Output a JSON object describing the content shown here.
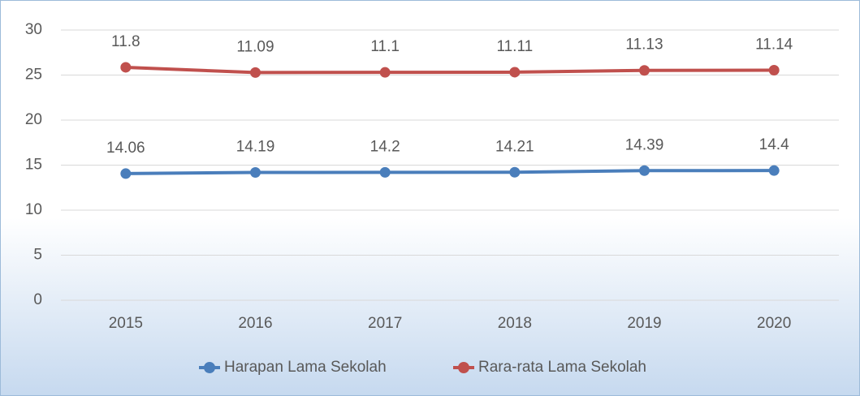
{
  "chart_data": {
    "type": "line",
    "stacked": true,
    "categories": [
      "2015",
      "2016",
      "2017",
      "2018",
      "2019",
      "2020"
    ],
    "series": [
      {
        "name": "Harapan Lama Sekolah",
        "color": "#4a7ebb",
        "values": [
          14.06,
          14.19,
          14.2,
          14.21,
          14.39,
          14.4
        ]
      },
      {
        "name": "Rara-rata Lama Sekolah",
        "color": "#c0504d",
        "values": [
          11.8,
          11.09,
          11.1,
          11.11,
          11.13,
          11.14
        ]
      }
    ],
    "ylim": [
      0,
      30
    ],
    "yticks": [
      0,
      5,
      10,
      15,
      20,
      25,
      30
    ],
    "grid": true,
    "legend": "bottom"
  }
}
